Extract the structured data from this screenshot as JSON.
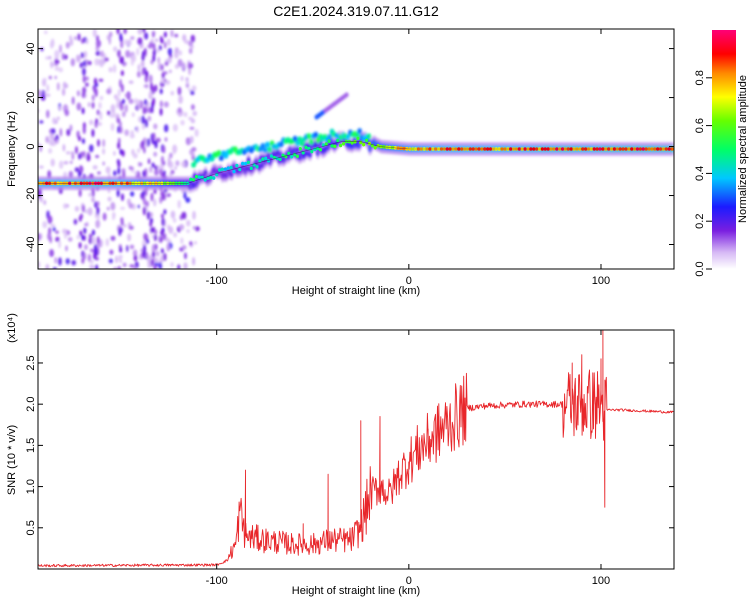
{
  "title": "C2E1.2024.319.07.11.G12",
  "chart_data": [
    {
      "type": "heatmap",
      "xlabel": "Height of straight line (km)",
      "ylabel": "Frequency (Hz)",
      "xlim": [
        -193,
        138
      ],
      "ylim": [
        -50,
        48
      ],
      "x_ticks": [
        -100,
        0,
        100
      ],
      "y_ticks": [
        -40,
        -20,
        0,
        20,
        40
      ],
      "colorbar": {
        "label": "Normalized spectral amplitude",
        "ticks": [
          0.0,
          0.2,
          0.4,
          0.6,
          0.8
        ],
        "range": [
          0,
          1
        ],
        "colormap": "rainbow (white-violet-blue-cyan-green-yellow-red-magenta)"
      },
      "ridge": {
        "x": [
          -193,
          -160,
          -130,
          -115,
          -100,
          -80,
          -60,
          -45,
          -35,
          -25,
          -15,
          0,
          20,
          60,
          85,
          95,
          100,
          138
        ],
        "frequency": [
          -15,
          -15,
          -15,
          -15,
          -11,
          -7,
          -3,
          0,
          2,
          2,
          0,
          -1,
          -1,
          -1,
          -1,
          -1,
          -1,
          -1
        ],
        "amplitude": [
          0.85,
          0.9,
          0.7,
          0.5,
          0.4,
          0.45,
          0.5,
          0.5,
          0.6,
          0.6,
          0.7,
          0.8,
          0.85,
          0.85,
          0.9,
          0.85,
          0.9,
          0.9
        ]
      },
      "noise_region_x": [
        -193,
        -110
      ]
    },
    {
      "type": "line",
      "xlabel": "Height of straight line (km)",
      "ylabel": "SNR (10 * v/v)",
      "scale_label": "(x10⁴)",
      "xlim": [
        -193,
        138
      ],
      "ylim": [
        0,
        2.9
      ],
      "x_ticks": [
        -100,
        0,
        100
      ],
      "y_ticks": [
        0.5,
        1.0,
        1.5,
        2.0,
        2.5
      ],
      "color": "#e8262a",
      "envelope": {
        "x": [
          -193,
          -100,
          -95,
          -90,
          -88,
          -85,
          -75,
          -60,
          -50,
          -40,
          -35,
          -30,
          -25,
          -20,
          -15,
          -10,
          -5,
          0,
          5,
          10,
          15,
          20,
          25,
          30,
          40,
          50,
          60,
          70,
          80,
          85,
          90,
          95,
          98,
          100,
          101,
          102,
          103,
          110,
          120,
          130,
          138
        ],
        "y": [
          0.04,
          0.05,
          0.1,
          0.3,
          0.7,
          0.4,
          0.35,
          0.3,
          0.3,
          0.35,
          0.35,
          0.35,
          0.5,
          0.9,
          1.0,
          0.9,
          1.15,
          1.3,
          1.45,
          1.55,
          1.65,
          1.75,
          1.85,
          1.95,
          1.98,
          1.99,
          2.0,
          2.0,
          2.0,
          2.0,
          2.0,
          2.0,
          2.0,
          2.0,
          1.95,
          1.93,
          1.93,
          1.93,
          1.92,
          1.91,
          1.9
        ]
      },
      "spikes": [
        {
          "x": -85,
          "y": 1.2
        },
        {
          "x": -55,
          "y": 0.55
        },
        {
          "x": -42,
          "y": 1.15
        },
        {
          "x": -25,
          "y": 1.8
        },
        {
          "x": -15,
          "y": 1.85
        },
        {
          "x": 0,
          "y": 1.3
        },
        {
          "x": 10,
          "y": 1.7
        },
        {
          "x": 15,
          "y": 1.85
        },
        {
          "x": 85,
          "y": 2.5
        },
        {
          "x": 90,
          "y": 2.6
        },
        {
          "x": 97,
          "y": 2.0
        },
        {
          "x": 100,
          "y": 2.55
        },
        {
          "x": 101,
          "y": 2.9
        },
        {
          "x": 102,
          "y": 0.75
        }
      ]
    }
  ]
}
